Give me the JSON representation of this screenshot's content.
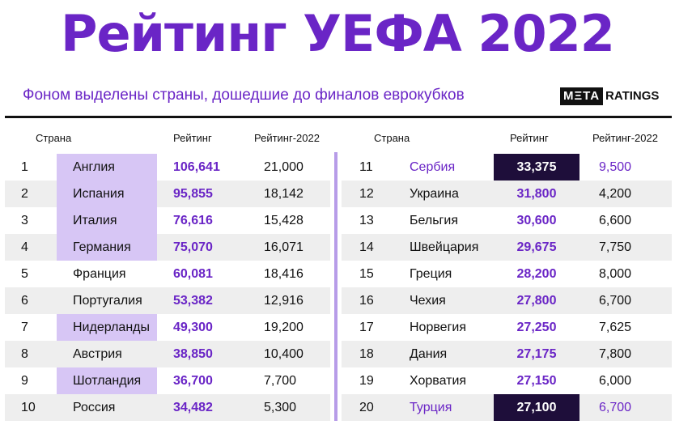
{
  "title": "Рейтинг УЕФА 2022",
  "subtitle": "Фоном выделены страны, дошедшие до финалов еврокубков",
  "logo": {
    "meta": "MΞTA",
    "ratings": "RATINGS"
  },
  "headers": {
    "country": "Страна",
    "rating": "Рейтинг",
    "rating2022": "Рейтинг-2022"
  },
  "colors": {
    "accent": "#6a25c6",
    "highlight": "#d7c6f5",
    "dark": "#1e0e3a",
    "divider": "#b79ce8"
  },
  "left": [
    {
      "rank": "1",
      "country": "Англия",
      "rating": "106,641",
      "r2022": "21,000",
      "highlight": true
    },
    {
      "rank": "2",
      "country": "Испания",
      "rating": "95,855",
      "r2022": "18,142",
      "highlight": true
    },
    {
      "rank": "3",
      "country": "Италия",
      "rating": "76,616",
      "r2022": "15,428",
      "highlight": true
    },
    {
      "rank": "4",
      "country": "Германия",
      "rating": "75,070",
      "r2022": "16,071",
      "highlight": true
    },
    {
      "rank": "5",
      "country": "Франция",
      "rating": "60,081",
      "r2022": "18,416",
      "highlight": false
    },
    {
      "rank": "6",
      "country": "Португалия",
      "rating": "53,382",
      "r2022": "12,916",
      "highlight": false
    },
    {
      "rank": "7",
      "country": "Нидерланды",
      "rating": "49,300",
      "r2022": "19,200",
      "highlight": true
    },
    {
      "rank": "8",
      "country": "Австрия",
      "rating": "38,850",
      "r2022": "10,400",
      "highlight": false
    },
    {
      "rank": "9",
      "country": "Шотландия",
      "rating": "36,700",
      "r2022": "7,700",
      "highlight": true
    },
    {
      "rank": "10",
      "country": "Россия",
      "rating": "34,482",
      "r2022": "5,300",
      "highlight": false
    }
  ],
  "right": [
    {
      "rank": "11",
      "country": "Сербия",
      "rating": "33,375",
      "r2022": "9,500",
      "special": true
    },
    {
      "rank": "12",
      "country": "Украина",
      "rating": "31,800",
      "r2022": "4,200",
      "special": false
    },
    {
      "rank": "13",
      "country": "Бельгия",
      "rating": "30,600",
      "r2022": "6,600",
      "special": false
    },
    {
      "rank": "14",
      "country": "Швейцария",
      "rating": "29,675",
      "r2022": "7,750",
      "special": false
    },
    {
      "rank": "15",
      "country": "Греция",
      "rating": "28,200",
      "r2022": "8,000",
      "special": false
    },
    {
      "rank": "16",
      "country": "Чехия",
      "rating": "27,800",
      "r2022": "6,700",
      "special": false
    },
    {
      "rank": "17",
      "country": "Норвегия",
      "rating": "27,250",
      "r2022": "7,625",
      "special": false
    },
    {
      "rank": "18",
      "country": "Дания",
      "rating": "27,175",
      "r2022": "7,800",
      "special": false
    },
    {
      "rank": "19",
      "country": "Хорватия",
      "rating": "27,150",
      "r2022": "6,000",
      "special": false
    },
    {
      "rank": "20",
      "country": "Турция",
      "rating": "27,100",
      "r2022": "6,700",
      "special": true
    }
  ]
}
